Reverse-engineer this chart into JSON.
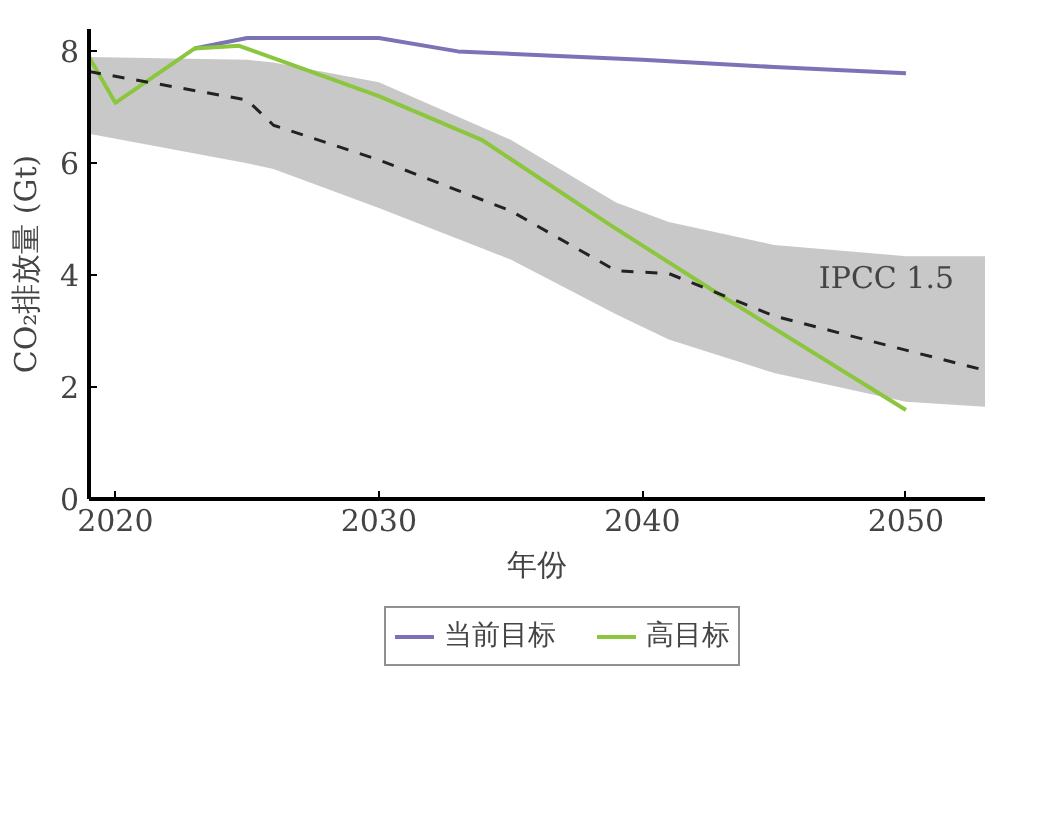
{
  "chart_data": {
    "type": "line",
    "xlabel": "年份",
    "ylabel": "CO₂排放量 (Gt)",
    "xlim": [
      2019,
      2053
    ],
    "xticks": [
      2020,
      2030,
      2040,
      2050
    ],
    "ylim": [
      0,
      8.4
    ],
    "yticks": [
      0,
      2,
      4,
      6,
      8
    ],
    "grid": false,
    "legend": "bottom",
    "marker": "none",
    "series": [
      {
        "name": "当前目标",
        "color": "#7b73b5",
        "x": [
          2023,
          2025,
          2030,
          2033,
          2040,
          2045,
          2050
        ],
        "values": [
          8.05,
          8.24,
          8.24,
          8.0,
          7.85,
          7.72,
          7.61
        ]
      },
      {
        "name": "高目标",
        "color": "#8cc63f",
        "x": [
          2019,
          2020,
          2023,
          2024.7,
          2030,
          2033.9,
          2038.8,
          2042.5,
          2050
        ],
        "values": [
          7.9,
          7.08,
          8.05,
          8.1,
          7.2,
          6.42,
          4.89,
          3.78,
          1.59
        ]
      },
      {
        "color": "#222222",
        "line_style": "dashed",
        "x": [
          2019,
          2025,
          2026,
          2030,
          2035,
          2039,
          2041,
          2045,
          2050,
          2053
        ],
        "values": [
          7.64,
          7.13,
          6.68,
          6.06,
          5.15,
          4.08,
          4.03,
          3.27,
          2.66,
          2.3
        ],
        "lower": [
          6.53,
          6.0,
          5.9,
          5.2,
          4.28,
          3.3,
          2.85,
          2.25,
          1.74,
          1.65
        ],
        "upper": [
          7.9,
          7.85,
          7.8,
          7.45,
          6.42,
          5.3,
          4.95,
          4.54,
          4.34,
          4.34
        ]
      }
    ],
    "annotations": [
      "IPCC 1.5"
    ]
  }
}
